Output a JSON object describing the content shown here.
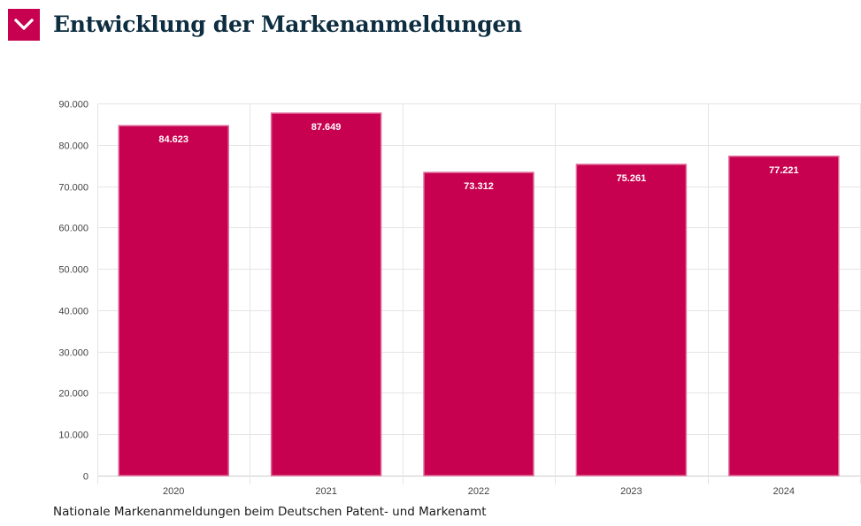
{
  "header": {
    "title": "Entwicklung der Markenanmeldungen",
    "toggle_icon": "chevron-down-icon"
  },
  "colors": {
    "bar": "#c7004f",
    "bar_border": "#e06f9c",
    "title": "#0d2d40",
    "grid": "#e5e5e5"
  },
  "chart_data": {
    "type": "bar",
    "categories": [
      "2020",
      "2021",
      "2022",
      "2023",
      "2024"
    ],
    "values": [
      84623,
      87649,
      73312,
      75261,
      77221
    ],
    "data_labels": [
      "84.623",
      "87.649",
      "73.312",
      "75.261",
      "77.221"
    ],
    "yticks": [
      0,
      10000,
      20000,
      30000,
      40000,
      50000,
      60000,
      70000,
      80000,
      90000
    ],
    "ytick_labels": [
      "0",
      "10.000",
      "20.000",
      "30.000",
      "40.000",
      "50.000",
      "60.000",
      "70.000",
      "80.000",
      "90.000"
    ],
    "ylim": [
      0,
      90000
    ],
    "grid": true,
    "title": "",
    "xlabel": "",
    "ylabel": ""
  },
  "caption": "Nationale Markenanmeldungen beim Deutschen Patent- und Markenamt"
}
